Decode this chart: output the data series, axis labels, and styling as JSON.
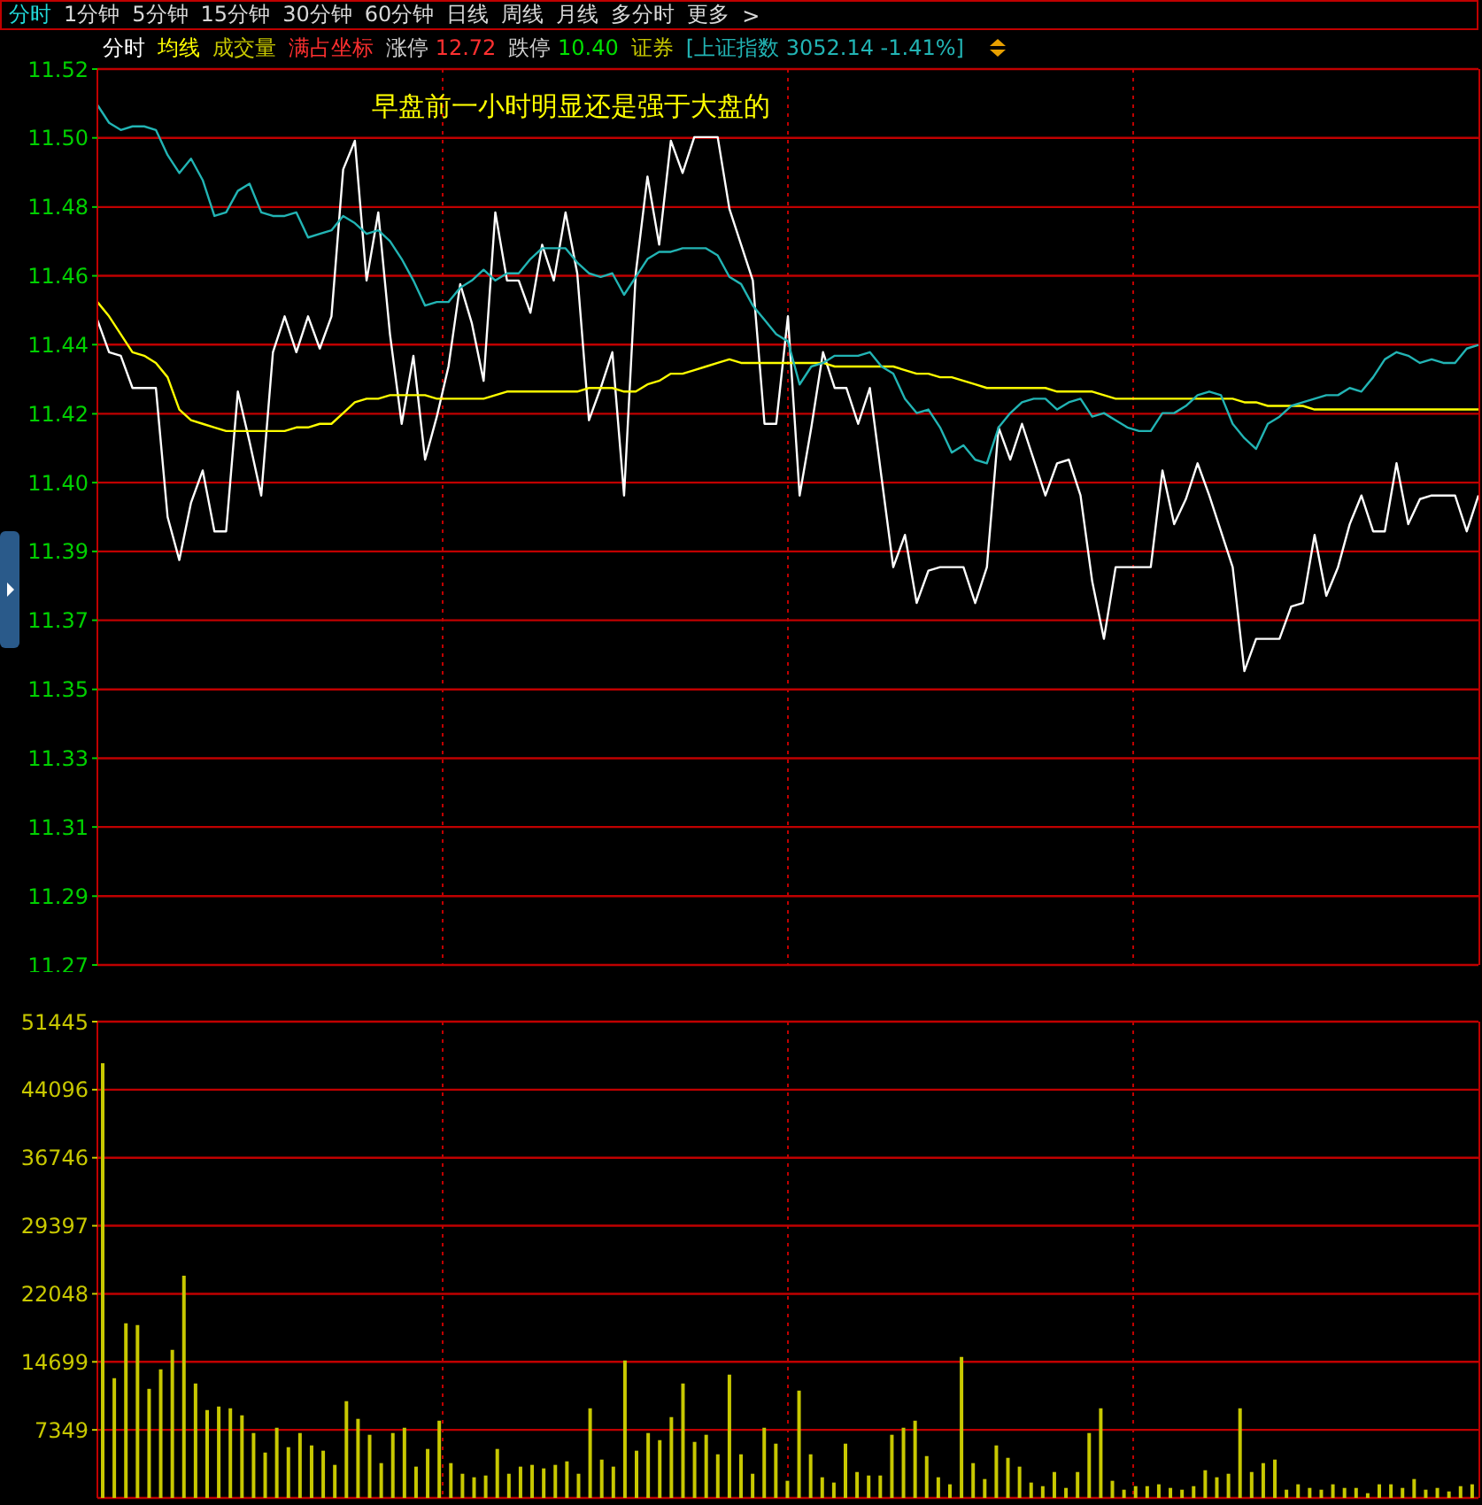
{
  "chart_data": [
    {
      "type": "line",
      "title": "分时 1分钟 5分钟 15分钟 30分钟 60分钟 日线 周线 月线 多分时 更多 >",
      "categories": [
        null,
        null,
        null,
        null,
        null,
        null,
        null,
        null,
        null,
        null,
        null,
        null,
        null,
        null,
        null,
        null,
        null,
        null,
        null,
        null,
        null,
        null,
        null,
        null,
        null,
        null,
        null,
        null,
        null,
        null,
        null,
        null,
        null,
        null,
        null,
        null,
        null,
        null,
        null,
        null,
        null,
        null,
        null,
        null,
        null,
        null,
        null,
        null,
        null,
        null,
        null,
        null,
        null,
        null,
        null,
        null,
        null,
        null,
        null,
        null,
        null,
        null,
        null,
        null,
        null,
        null,
        null,
        null,
        null,
        null,
        null,
        null,
        null,
        null,
        null,
        null,
        null,
        null,
        null,
        null,
        null,
        null,
        null,
        null,
        null,
        null,
        null,
        null,
        null,
        null,
        null,
        null,
        null,
        null,
        null,
        null,
        null,
        null,
        null,
        null,
        null,
        null,
        null,
        null,
        null,
        null,
        null,
        null,
        null,
        null,
        null,
        null,
        null,
        null,
        null,
        null,
        null,
        null,
        null
      ],
      "series": [
        {
          "name": "分时",
          "color": "#ffffff",
          "values": [
            11.45,
            11.441,
            11.44,
            11.431,
            11.431,
            11.431,
            11.395,
            11.383,
            11.399,
            11.408,
            11.391,
            11.391,
            11.43,
            11.416,
            11.401,
            11.441,
            11.451,
            11.441,
            11.451,
            11.442,
            11.451,
            11.492,
            11.5,
            11.461,
            11.48,
            11.446,
            11.421,
            11.44,
            11.411,
            11.423,
            11.437,
            11.46,
            11.449,
            11.433,
            11.48,
            11.461,
            11.461,
            11.452,
            11.471,
            11.461,
            11.48,
            11.463,
            11.422,
            11.431,
            11.441,
            11.401,
            11.463,
            11.49,
            11.471,
            11.5,
            11.491,
            11.501,
            11.501,
            11.501,
            11.481,
            11.471,
            11.461,
            11.421,
            11.421,
            11.451,
            11.401,
            11.42,
            11.441,
            11.431,
            11.431,
            11.421,
            11.431,
            11.406,
            11.381,
            11.39,
            11.371,
            11.38,
            11.381,
            11.381,
            11.381,
            11.371,
            11.381,
            11.42,
            11.411,
            11.421,
            11.411,
            11.401,
            11.41,
            11.411,
            11.401,
            11.377,
            11.361,
            11.381,
            11.381,
            11.381,
            11.381,
            11.408,
            11.393,
            11.4,
            11.41,
            11.401,
            11.391,
            11.381,
            11.352,
            11.361,
            11.361,
            11.361,
            11.37,
            11.371,
            11.39,
            11.373,
            11.381,
            11.393,
            11.401,
            11.391,
            11.391,
            11.41,
            11.393,
            11.4,
            11.401,
            11.401,
            11.401,
            11.391,
            11.401
          ]
        },
        {
          "name": "均线",
          "color": "#ffff00",
          "values": [
            11.455,
            11.451,
            11.446,
            11.441,
            11.44,
            11.438,
            11.434,
            11.425,
            11.422,
            11.421,
            11.42,
            11.419,
            11.419,
            11.419,
            11.419,
            11.419,
            11.419,
            11.42,
            11.42,
            11.421,
            11.421,
            11.424,
            11.427,
            11.428,
            11.428,
            11.429,
            11.429,
            11.429,
            11.429,
            11.428,
            11.428,
            11.428,
            11.428,
            11.428,
            11.429,
            11.43,
            11.43,
            11.43,
            11.43,
            11.43,
            11.43,
            11.43,
            11.431,
            11.431,
            11.431,
            11.43,
            11.43,
            11.432,
            11.433,
            11.435,
            11.435,
            11.436,
            11.437,
            11.438,
            11.439,
            11.438,
            11.438,
            11.438,
            11.438,
            11.438,
            11.438,
            11.438,
            11.438,
            11.437,
            11.437,
            11.437,
            11.437,
            11.437,
            11.437,
            11.436,
            11.435,
            11.435,
            11.434,
            11.434,
            11.433,
            11.432,
            11.431,
            11.431,
            11.431,
            11.431,
            11.431,
            11.431,
            11.43,
            11.43,
            11.43,
            11.43,
            11.429,
            11.428,
            11.428,
            11.428,
            11.428,
            11.428,
            11.428,
            11.428,
            11.428,
            11.428,
            11.428,
            11.428,
            11.427,
            11.427,
            11.426,
            11.426,
            11.426,
            11.426,
            11.425,
            11.425,
            11.425,
            11.425,
            11.425,
            11.425,
            11.425,
            11.425,
            11.425,
            11.425,
            11.425,
            11.425,
            11.425,
            11.425,
            11.425
          ]
        },
        {
          "name": "[上证指数 3052.14 -1.41%]",
          "color": "#22b4b4",
          "values": [
            11.51,
            11.505,
            11.503,
            11.504,
            11.504,
            11.503,
            11.496,
            11.491,
            11.495,
            11.489,
            11.479,
            11.48,
            11.486,
            11.488,
            11.48,
            11.479,
            11.479,
            11.48,
            11.473,
            11.474,
            11.475,
            11.479,
            11.477,
            11.474,
            11.475,
            11.472,
            11.467,
            11.461,
            11.454,
            11.455,
            11.455,
            11.459,
            11.461,
            11.464,
            11.461,
            11.463,
            11.463,
            11.467,
            11.47,
            11.47,
            11.47,
            11.466,
            11.463,
            11.462,
            11.463,
            11.457,
            11.462,
            11.467,
            11.469,
            11.469,
            11.47,
            11.47,
            11.47,
            11.468,
            11.462,
            11.46,
            11.454,
            11.45,
            11.446,
            11.444,
            11.432,
            11.437,
            11.438,
            11.44,
            11.44,
            11.44,
            11.441,
            11.437,
            11.435,
            11.428,
            11.424,
            11.425,
            11.42,
            11.413,
            11.415,
            11.411,
            11.41,
            11.42,
            11.424,
            11.427,
            11.428,
            11.428,
            11.425,
            11.427,
            11.428,
            11.423,
            11.424,
            11.422,
            11.42,
            11.419,
            11.419,
            11.424,
            11.424,
            11.426,
            11.429,
            11.43,
            11.429,
            11.421,
            11.417,
            11.414,
            11.421,
            11.423,
            11.426,
            11.427,
            11.428,
            11.429,
            11.429,
            11.431,
            11.43,
            11.434,
            11.439,
            11.441,
            11.44,
            11.438,
            11.439,
            11.438,
            11.438,
            11.442,
            11.443
          ]
        }
      ],
      "ylim": [
        11.27,
        11.52
      ],
      "yticks": [
        {
          "value": 11.52,
          "label": "11.52"
        },
        {
          "value": 11.5008,
          "label": "11.50"
        },
        {
          "value": 11.4815,
          "label": "11.48"
        },
        {
          "value": 11.4623,
          "label": "11.46"
        },
        {
          "value": 11.4431,
          "label": "11.44"
        },
        {
          "value": 11.4238,
          "label": "11.42"
        },
        {
          "value": 11.4046,
          "label": "11.40"
        },
        {
          "value": 11.3854,
          "label": "11.39"
        },
        {
          "value": 11.3662,
          "label": "11.37"
        },
        {
          "value": 11.3469,
          "label": "11.35"
        },
        {
          "value": 11.3277,
          "label": "11.33"
        },
        {
          "value": 11.3085,
          "label": "11.31"
        },
        {
          "value": 11.2892,
          "label": "11.29"
        },
        {
          "value": 11.27,
          "label": "11.27"
        }
      ],
      "grid": true,
      "legend": "top left",
      "tick_labels": "y",
      "marker": "none",
      "line_style": "solid",
      "annotations": [
        "满占坐标",
        "涨停 12.72",
        "跌停 10.40",
        "证券",
        "早盘前一小时明显还是强于大盘的"
      ]
    },
    {
      "type": "bar",
      "categories": [
        null,
        null,
        null,
        null,
        null,
        null,
        null,
        null,
        null,
        null,
        null,
        null,
        null,
        null,
        null,
        null,
        null,
        null,
        null,
        null,
        null,
        null,
        null,
        null,
        null,
        null,
        null,
        null,
        null,
        null,
        null,
        null,
        null,
        null,
        null,
        null,
        null,
        null,
        null,
        null,
        null,
        null,
        null,
        null,
        null,
        null,
        null,
        null,
        null,
        null,
        null,
        null,
        null,
        null,
        null,
        null,
        null,
        null,
        null,
        null,
        null,
        null,
        null,
        null,
        null,
        null,
        null,
        null,
        null,
        null,
        null,
        null,
        null,
        null,
        null,
        null,
        null,
        null,
        null,
        null,
        null,
        null,
        null,
        null,
        null,
        null,
        null,
        null,
        null,
        null,
        null,
        null,
        null,
        null,
        null,
        null,
        null,
        null,
        null,
        null,
        null,
        null,
        null,
        null,
        null,
        null,
        null,
        null,
        null,
        null,
        null,
        null,
        null,
        null,
        null,
        null,
        null,
        null,
        null
      ],
      "series": [
        {
          "name": "成交量",
          "color": "#c8c800",
          "values": [
            46950,
            12930,
            18860,
            18660,
            11780,
            13890,
            15990,
            24010,
            12360,
            9490,
            9870,
            9680,
            8920,
            7010,
            4900,
            7580,
            5480,
            7010,
            5670,
            5100,
            3570,
            10450,
            8540,
            6820,
            3760,
            7010,
            7580,
            3380,
            5290,
            8340,
            3760,
            2610,
            2230,
            2420,
            5290,
            2610,
            3380,
            3570,
            3190,
            3570,
            3950,
            2610,
            9680,
            4140,
            3380,
            14840,
            5100,
            7010,
            6240,
            8730,
            12360,
            6050,
            6820,
            4710,
            13310,
            4710,
            2610,
            7580,
            5860,
            1850,
            11590,
            4710,
            2230,
            1660,
            5860,
            2800,
            2420,
            2420,
            6820,
            7580,
            8340,
            4520,
            2230,
            1470,
            15220,
            3760,
            2040,
            5670,
            4330,
            3380,
            1660,
            1270,
            2800,
            1080,
            2800,
            7010,
            9680,
            1850,
            890,
            1270,
            1270,
            1470,
            1080,
            890,
            1270,
            2990,
            2230,
            2610,
            9680,
            2800,
            3760,
            4140,
            890,
            1470,
            1080,
            890,
            1470,
            1080,
            1080,
            510,
            1470,
            1470,
            1080,
            2040,
            890,
            1080,
            700,
            1270,
            1470
          ]
        }
      ],
      "ylim": [
        0,
        51445
      ],
      "yticks": [
        7349,
        14699,
        22048,
        29397,
        36746,
        44096,
        51445
      ],
      "grid": true,
      "legend": "top left",
      "tick_labels": "y"
    }
  ]
}
